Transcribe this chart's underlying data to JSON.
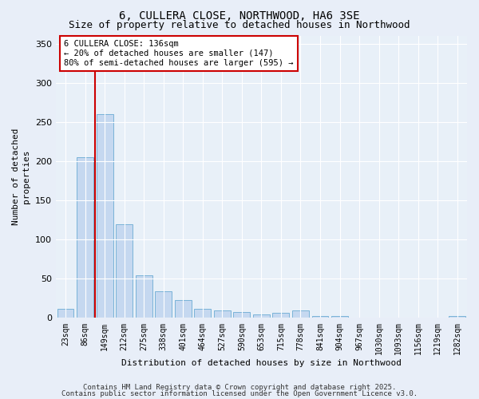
{
  "title1": "6, CULLERA CLOSE, NORTHWOOD, HA6 3SE",
  "title2": "Size of property relative to detached houses in Northwood",
  "xlabel": "Distribution of detached houses by size in Northwood",
  "ylabel": "Number of detached\nproperties",
  "categories": [
    "23sqm",
    "86sqm",
    "149sqm",
    "212sqm",
    "275sqm",
    "338sqm",
    "401sqm",
    "464sqm",
    "527sqm",
    "590sqm",
    "653sqm",
    "715sqm",
    "778sqm",
    "841sqm",
    "904sqm",
    "967sqm",
    "1030sqm",
    "1093sqm",
    "1156sqm",
    "1219sqm",
    "1282sqm"
  ],
  "values": [
    12,
    205,
    260,
    120,
    54,
    34,
    23,
    12,
    10,
    8,
    5,
    7,
    10,
    3,
    3,
    0,
    0,
    0,
    0,
    0,
    2
  ],
  "bar_color": "#c5d8f0",
  "bar_edge_color": "#7ab3d8",
  "ylim": [
    0,
    360
  ],
  "yticks": [
    0,
    50,
    100,
    150,
    200,
    250,
    300,
    350
  ],
  "red_line_x": 1.5,
  "annotation_text": "6 CULLERA CLOSE: 136sqm\n← 20% of detached houses are smaller (147)\n80% of semi-detached houses are larger (595) →",
  "annotation_box_color": "#ffffff",
  "annotation_edge_color": "#cc0000",
  "footer1": "Contains HM Land Registry data © Crown copyright and database right 2025.",
  "footer2": "Contains public sector information licensed under the Open Government Licence v3.0.",
  "bg_color": "#e8eef8",
  "plot_bg_color": "#e8f0f8",
  "title_fontsize": 10,
  "title2_fontsize": 9,
  "axis_label_fontsize": 8,
  "tick_label_fontsize": 7,
  "footer_fontsize": 6.5
}
